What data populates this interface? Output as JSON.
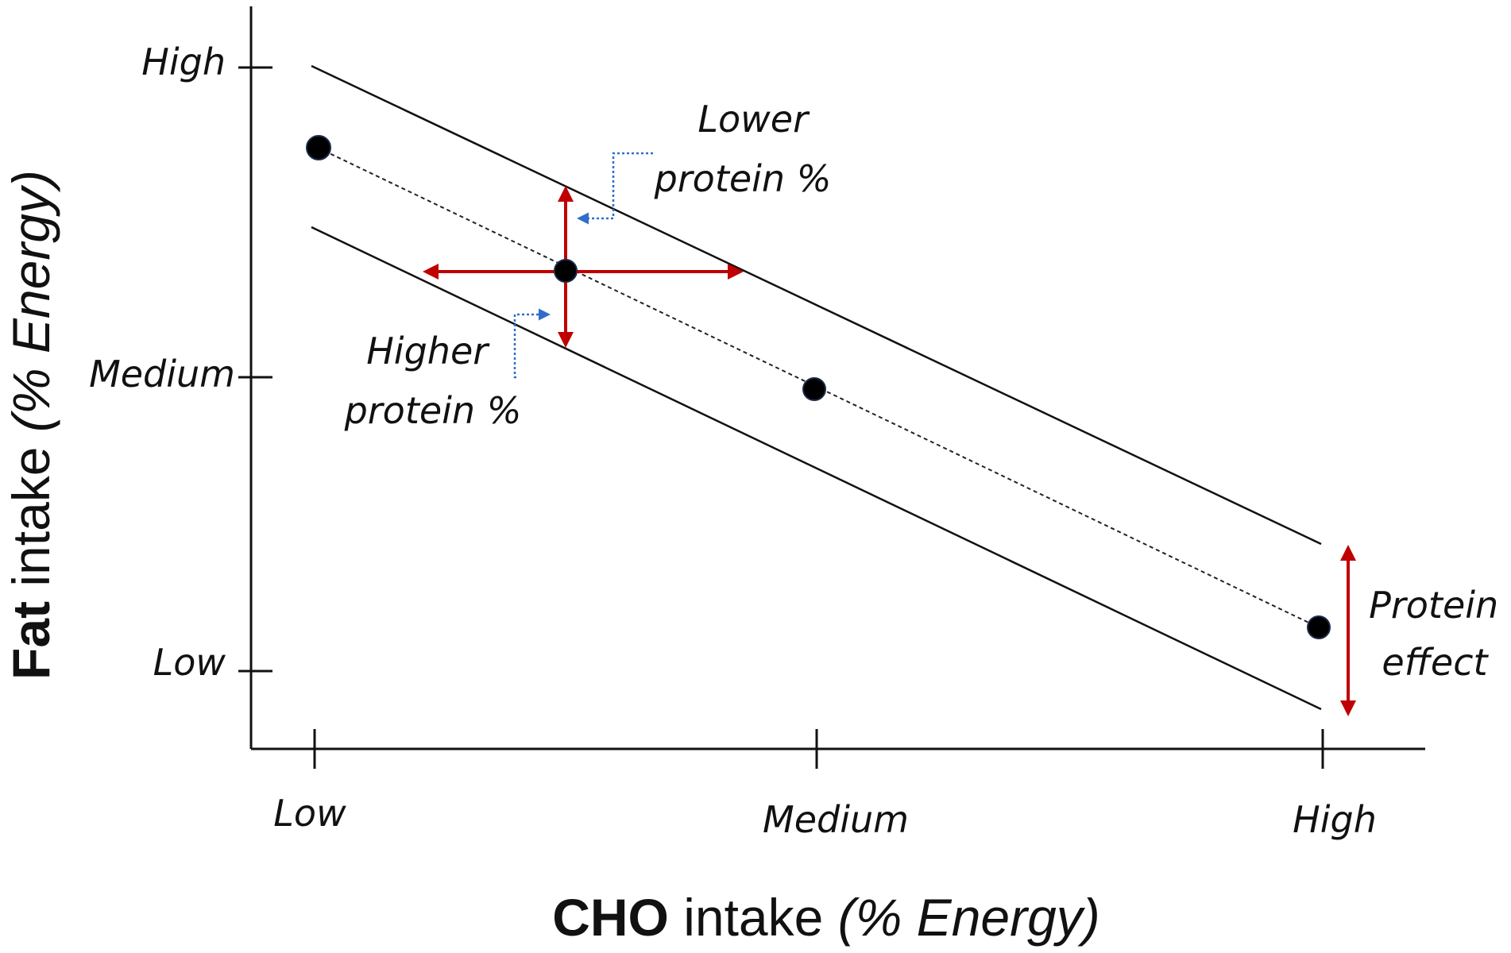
{
  "diagram": {
    "x_axis": {
      "title_bold": "CHO",
      "title_rest": " intake ",
      "title_unit": "(% Energy)",
      "ticks": [
        "Low",
        "Medium",
        "High"
      ]
    },
    "y_axis": {
      "title_bold": "Fat",
      "title_rest": " intake ",
      "title_unit": "(% Energy)",
      "ticks": [
        "High",
        "Medium",
        "Low"
      ]
    },
    "annotations": {
      "lower_protein": [
        "Lower",
        "protein %"
      ],
      "higher_protein": [
        "Higher",
        "protein %"
      ],
      "protein_effect": [
        "Protein",
        "effect"
      ]
    },
    "colors": {
      "axis": "#111111",
      "point": "#000000",
      "arrow_red": "#c00000",
      "arrow_blue": "#2f6fc9"
    }
  }
}
